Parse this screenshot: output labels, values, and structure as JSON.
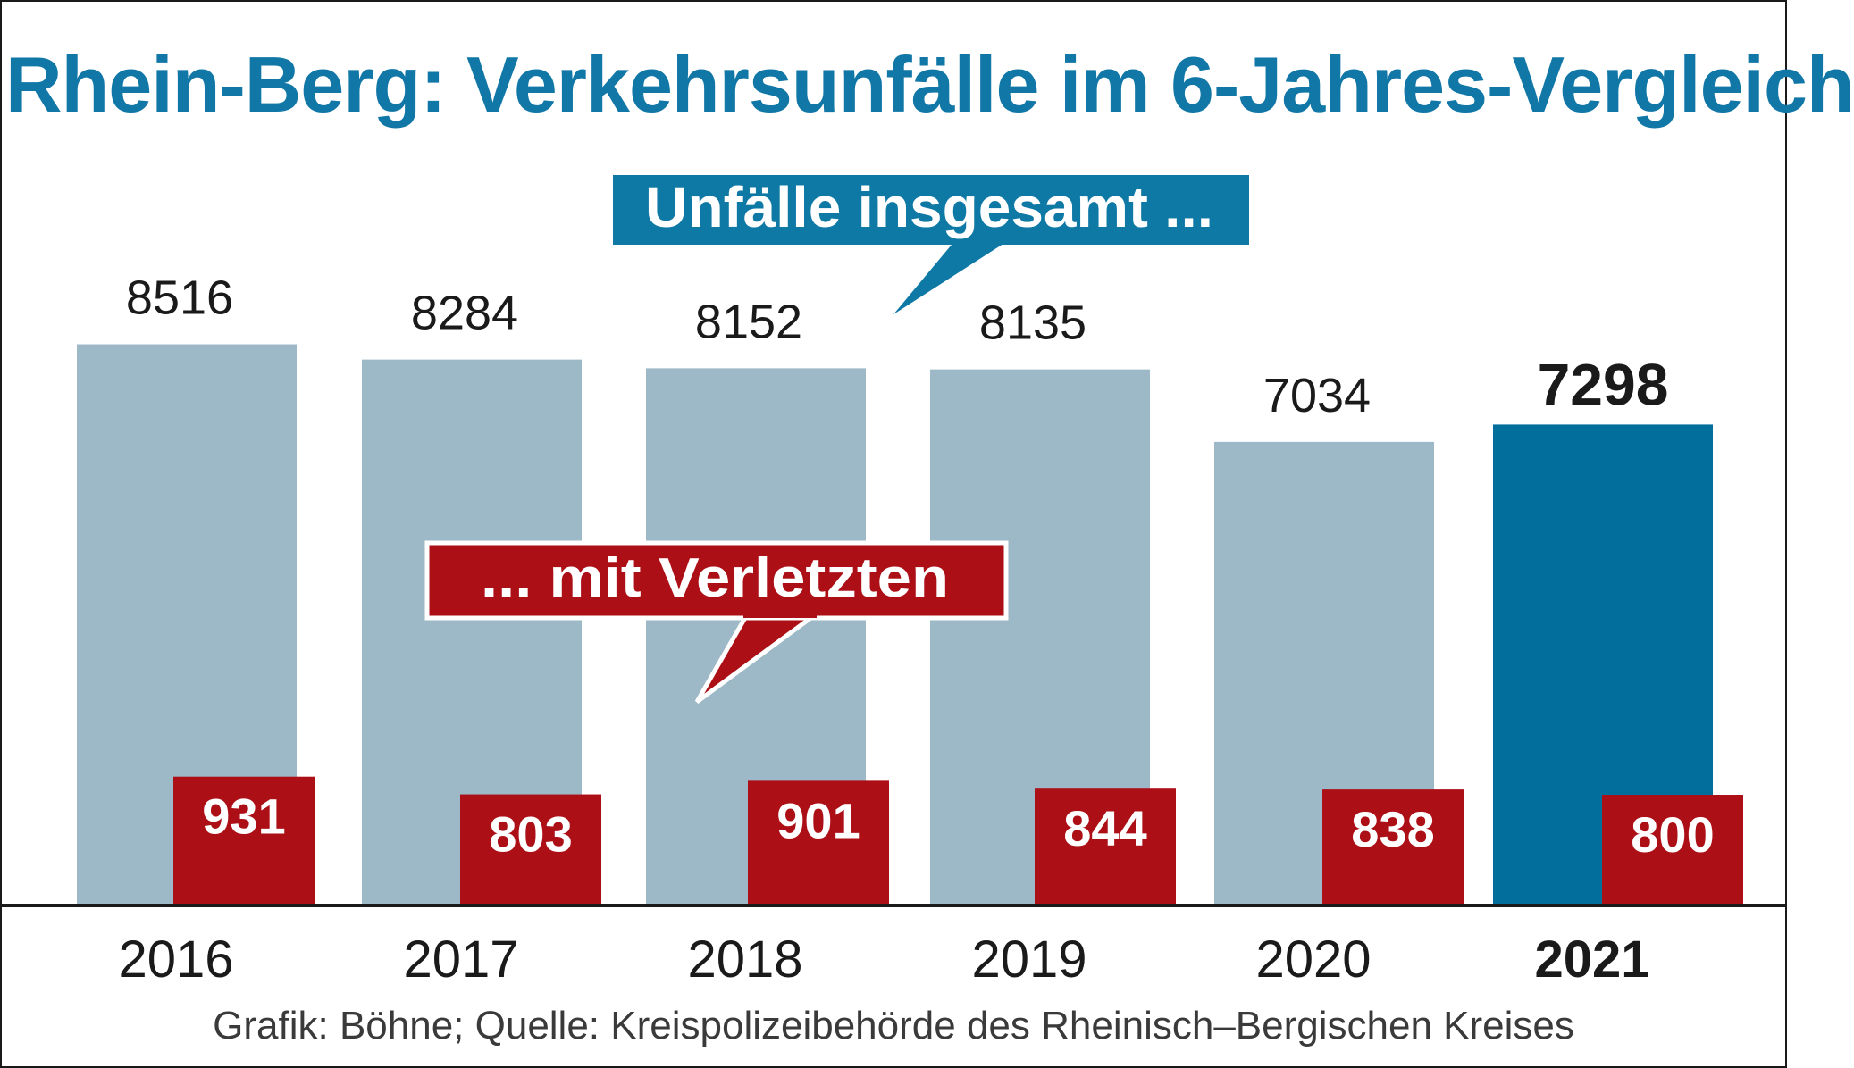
{
  "title": "Rhein-Berg: Verkehrsunfälle im 6-Jahres-Vergleich",
  "source": "Grafik: Böhne; Quelle: Kreispolizeibehörde des Rheinisch–Bergischen Kreises",
  "colors": {
    "title": "#1177a7",
    "total_bar": "#9db8c6",
    "total_bar_highlight": "#026e9b",
    "injured_bar": "#ac0f16",
    "callout_total": "#0f79a6",
    "callout_injured": "#ac0f16",
    "axis": "#1a1a1a",
    "text": "#1a1a1a"
  },
  "chart_data": {
    "type": "bar",
    "title": "Rhein-Berg: Verkehrsunfälle im 6-Jahres-Vergleich",
    "xlabel": "",
    "ylabel": "",
    "ylim": [
      0,
      9500
    ],
    "grid": false,
    "categories": [
      "2016",
      "2017",
      "2018",
      "2019",
      "2020",
      "2021"
    ],
    "highlight_category": "2021",
    "series": [
      {
        "name": "Unfälle insgesamt ...",
        "values": [
          8516,
          8284,
          8152,
          8135,
          7034,
          7298
        ]
      },
      {
        "name": "... mit Verletzten",
        "values": [
          931,
          803,
          901,
          844,
          838,
          800
        ]
      }
    ]
  }
}
